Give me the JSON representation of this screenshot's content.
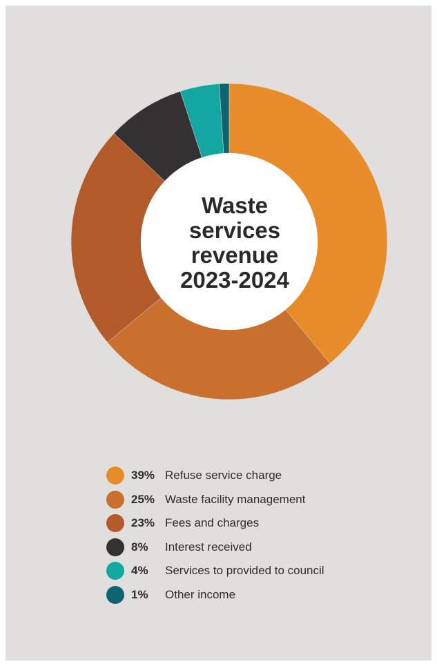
{
  "chart_data": {
    "type": "pie",
    "title": "Waste services revenue 2023-2024",
    "categories": [
      "Refuse service charge",
      "Waste facility management",
      "Fees and charges",
      "Interest received",
      "Services to provided to council",
      "Other income"
    ],
    "values": [
      39,
      25,
      23,
      8,
      4,
      1
    ],
    "value_labels": [
      "39%",
      "25%",
      "23%",
      "8%",
      "4%",
      "1%"
    ],
    "colors": [
      "#e88c2a",
      "#c9702e",
      "#b35a2a",
      "#333132",
      "#13a7a2",
      "#0e6570"
    ],
    "donut": true
  }
}
